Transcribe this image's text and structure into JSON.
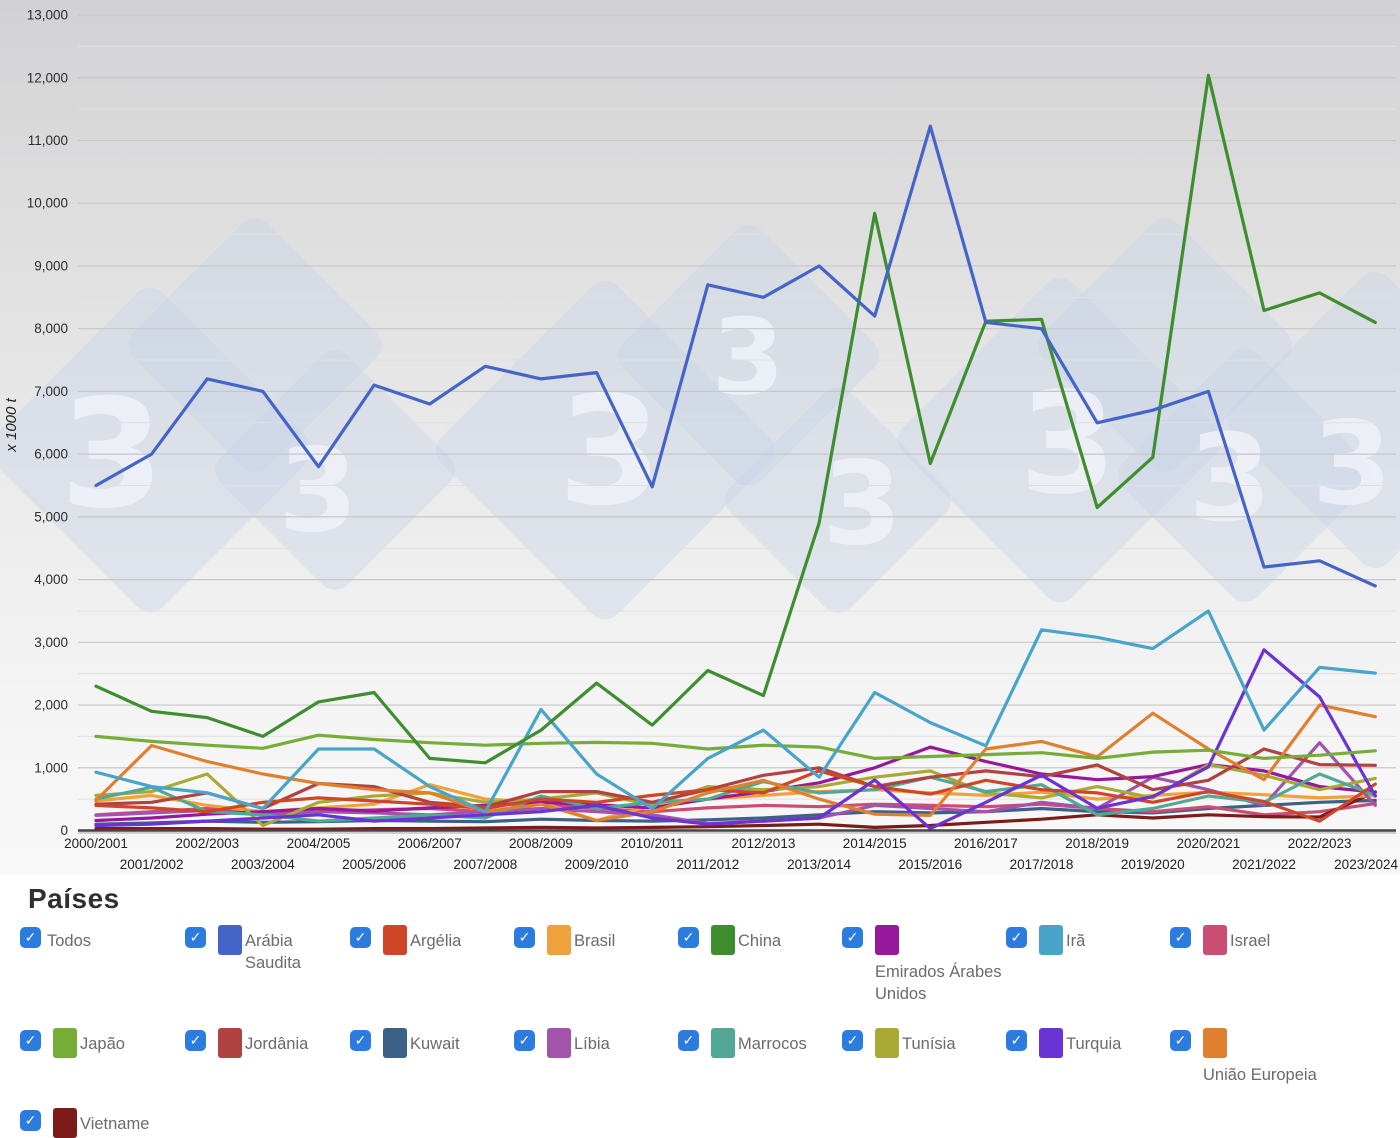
{
  "watermark": {
    "glyph": "3"
  },
  "legend": {
    "title": "Países",
    "checkbox_color": "#2c7ce0",
    "checkbox_glyph": "✓",
    "items": [
      {
        "label": "Todos",
        "color": null,
        "checked": true
      },
      {
        "label": "Arábia Saudita",
        "color": "#4464c8",
        "checked": true
      },
      {
        "label": "Argélia",
        "color": "#cf4527",
        "checked": true
      },
      {
        "label": "Brasil",
        "color": "#efa23b",
        "checked": true
      },
      {
        "label": "China",
        "color": "#3e8e2f",
        "checked": true
      },
      {
        "label": "Emirados Árabes Unidos",
        "color": "#96189b",
        "checked": true,
        "label_below": true
      },
      {
        "label": "Irã",
        "color": "#48a4c9",
        "checked": true
      },
      {
        "label": "Israel",
        "color": "#c94e72",
        "checked": true
      },
      {
        "label": "Japão",
        "color": "#77ac36",
        "checked": true
      },
      {
        "label": "Jordânia",
        "color": "#b04341",
        "checked": true
      },
      {
        "label": "Kuwait",
        "color": "#3c6186",
        "checked": true
      },
      {
        "label": "Líbia",
        "color": "#a254ac",
        "checked": true
      },
      {
        "label": "Marrocos",
        "color": "#50a895",
        "checked": true
      },
      {
        "label": "Tunísia",
        "color": "#a9aa33",
        "checked": true
      },
      {
        "label": "Turquia",
        "color": "#6a33d4",
        "checked": true
      },
      {
        "label": "União Europeia",
        "color": "#e0802f",
        "checked": true,
        "label_below": true
      },
      {
        "label": "Vietname",
        "color": "#7b1b1a",
        "checked": true
      }
    ]
  },
  "chart_data": {
    "type": "line",
    "y_axis_title": "x 1000 t",
    "ylim": [
      0,
      13000
    ],
    "y_major_step": 1000,
    "y_minor_step": 500,
    "grid": true,
    "legend_position": "bottom",
    "x_labels": [
      "2000/2001",
      "2001/2002",
      "2002/2003",
      "2003/2004",
      "2004/2005",
      "2005/2006",
      "2006/2007",
      "2007/2008",
      "2008/2009",
      "2009/2010",
      "2010/2011",
      "2011/2012",
      "2012/2013",
      "2013/2014",
      "2014/2015",
      "2015/2016",
      "2016/2017",
      "2017/2018",
      "2018/2019",
      "2019/2020",
      "2020/2021",
      "2021/2022",
      "2022/2023",
      "2023/2024"
    ],
    "units": "x 1000 t",
    "series": [
      {
        "name": "Arábia Saudita",
        "color": "#4464c8",
        "values": [
          5500,
          6000,
          7200,
          7000,
          5800,
          7100,
          6800,
          7400,
          7200,
          7300,
          5480,
          8700,
          8500,
          9000,
          8200,
          11230,
          8100,
          8000,
          6500,
          6700,
          7000,
          4200,
          4300,
          3900
        ]
      },
      {
        "name": "Argélia",
        "color": "#cf4527",
        "values": [
          400,
          360,
          300,
          450,
          520,
          470,
          420,
          350,
          500,
          450,
          560,
          650,
          600,
          950,
          700,
          580,
          800,
          650,
          600,
          450,
          620,
          460,
          150,
          740
        ]
      },
      {
        "name": "Brasil",
        "color": "#efa23b",
        "values": [
          470,
          560,
          400,
          300,
          360,
          420,
          730,
          500,
          450,
          160,
          400,
          500,
          560,
          620,
          650,
          600,
          560,
          610,
          500,
          560,
          610,
          570,
          520,
          555
        ]
      },
      {
        "name": "China",
        "color": "#3e8e2f",
        "values": [
          2300,
          1900,
          1800,
          1500,
          2050,
          2200,
          1150,
          1080,
          1600,
          2350,
          1680,
          2550,
          2150,
          4900,
          9840,
          5850,
          8120,
          8150,
          5150,
          5950,
          12040,
          8290,
          8570,
          8100
        ]
      },
      {
        "name": "Emirados Árabes Unidos",
        "color": "#96189b",
        "values": [
          160,
          200,
          260,
          300,
          350,
          310,
          360,
          400,
          450,
          410,
          360,
          500,
          620,
          760,
          1000,
          1330,
          1100,
          900,
          810,
          860,
          1050,
          950,
          700,
          610
        ]
      },
      {
        "name": "Irã",
        "color": "#48a4c9",
        "values": [
          930,
          700,
          600,
          350,
          1300,
          1300,
          700,
          300,
          1930,
          900,
          350,
          1150,
          1600,
          850,
          2200,
          1720,
          1350,
          3200,
          3080,
          2900,
          3500,
          1600,
          2600,
          2510
        ]
      },
      {
        "name": "Israel",
        "color": "#c94e72",
        "values": [
          250,
          300,
          350,
          280,
          300,
          330,
          350,
          300,
          420,
          350,
          300,
          360,
          400,
          380,
          420,
          400,
          380,
          420,
          350,
          300,
          380,
          250,
          300,
          430
        ]
      },
      {
        "name": "Japão",
        "color": "#77ac36",
        "values": [
          1500,
          1420,
          1360,
          1310,
          1520,
          1450,
          1400,
          1360,
          1390,
          1405,
          1390,
          1300,
          1360,
          1330,
          1150,
          1180,
          1210,
          1240,
          1150,
          1250,
          1280,
          1150,
          1200,
          1270
        ]
      },
      {
        "name": "Jordânia",
        "color": "#b04341",
        "values": [
          420,
          450,
          600,
          350,
          750,
          700,
          450,
          380,
          620,
          620,
          450,
          650,
          880,
          1000,
          700,
          850,
          950,
          860,
          1045,
          650,
          800,
          1300,
          1050,
          1040
        ]
      },
      {
        "name": "Kuwait",
        "color": "#3c6186",
        "values": [
          100,
          120,
          150,
          130,
          140,
          160,
          150,
          140,
          180,
          160,
          150,
          170,
          200,
          250,
          300,
          280,
          300,
          350,
          300,
          280,
          350,
          400,
          450,
          480
        ]
      },
      {
        "name": "Líbia",
        "color": "#a254ac",
        "values": [
          240,
          280,
          320,
          250,
          300,
          280,
          250,
          300,
          350,
          300,
          250,
          110,
          150,
          200,
          400,
          350,
          300,
          450,
          350,
          850,
          650,
          400,
          1400,
          400
        ]
      },
      {
        "name": "Marrocos",
        "color": "#50a895",
        "values": [
          500,
          690,
          300,
          250,
          150,
          200,
          250,
          200,
          550,
          350,
          450,
          500,
          780,
          600,
          650,
          850,
          620,
          730,
          250,
          350,
          550,
          450,
          900,
          560
        ]
      },
      {
        "name": "Tunísia",
        "color": "#a9aa33",
        "values": [
          560,
          620,
          900,
          80,
          450,
          550,
          600,
          450,
          500,
          600,
          400,
          700,
          650,
          700,
          850,
          950,
          600,
          520,
          700,
          520,
          1050,
          880,
          650,
          830
        ]
      },
      {
        "name": "Turquia",
        "color": "#6a33d4",
        "values": [
          80,
          100,
          150,
          200,
          250,
          150,
          200,
          250,
          300,
          400,
          200,
          100,
          150,
          200,
          805,
          30,
          450,
          880,
          355,
          540,
          1015,
          2880,
          2130,
          550
        ]
      },
      {
        "name": "União Europeia",
        "color": "#e0802f",
        "values": [
          480,
          1355,
          1100,
          900,
          750,
          650,
          600,
          300,
          420,
          160,
          300,
          600,
          800,
          500,
          260,
          240,
          1300,
          1420,
          1175,
          1870,
          1300,
          810,
          2000,
          1815
        ]
      },
      {
        "name": "Vietname",
        "color": "#7b1b1a",
        "values": [
          30,
          30,
          30,
          20,
          20,
          30,
          30,
          40,
          50,
          40,
          50,
          60,
          80,
          100,
          50,
          80,
          130,
          180,
          250,
          200,
          250,
          220,
          215,
          615
        ]
      }
    ]
  }
}
